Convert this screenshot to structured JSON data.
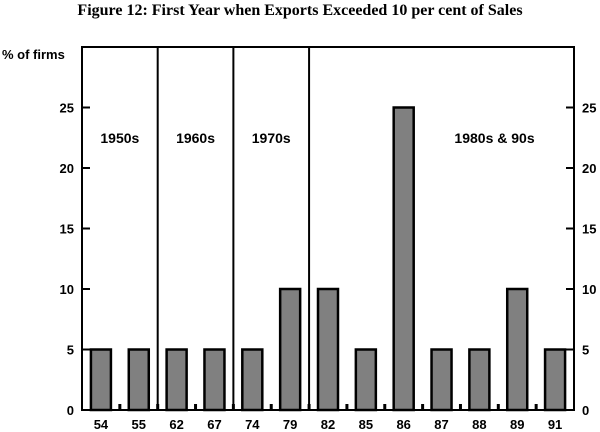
{
  "chart_data": {
    "type": "bar",
    "title": "Figure 12: First Year when Exports Exceeded 10 per cent of Sales",
    "ylabel": "% of firms",
    "xlabel": "",
    "ylim": [
      0,
      30
    ],
    "yticks": [
      0,
      5,
      10,
      15,
      20,
      25
    ],
    "categories": [
      "54",
      "55",
      "62",
      "67",
      "74",
      "79",
      "82",
      "85",
      "86",
      "87",
      "88",
      "89",
      "91"
    ],
    "values": [
      5,
      5,
      5,
      5,
      5,
      10,
      10,
      5,
      25,
      5,
      5,
      10,
      5
    ],
    "decades": [
      {
        "label": "1950s",
        "categories": [
          "54",
          "55"
        ]
      },
      {
        "label": "1960s",
        "categories": [
          "62",
          "67"
        ]
      },
      {
        "label": "1970s",
        "categories": [
          "74",
          "79"
        ]
      },
      {
        "label": "1980s & 90s",
        "categories": [
          "82",
          "85",
          "86",
          "87",
          "88",
          "89",
          "91"
        ]
      }
    ],
    "bar_color": "#808080",
    "grid": false
  }
}
